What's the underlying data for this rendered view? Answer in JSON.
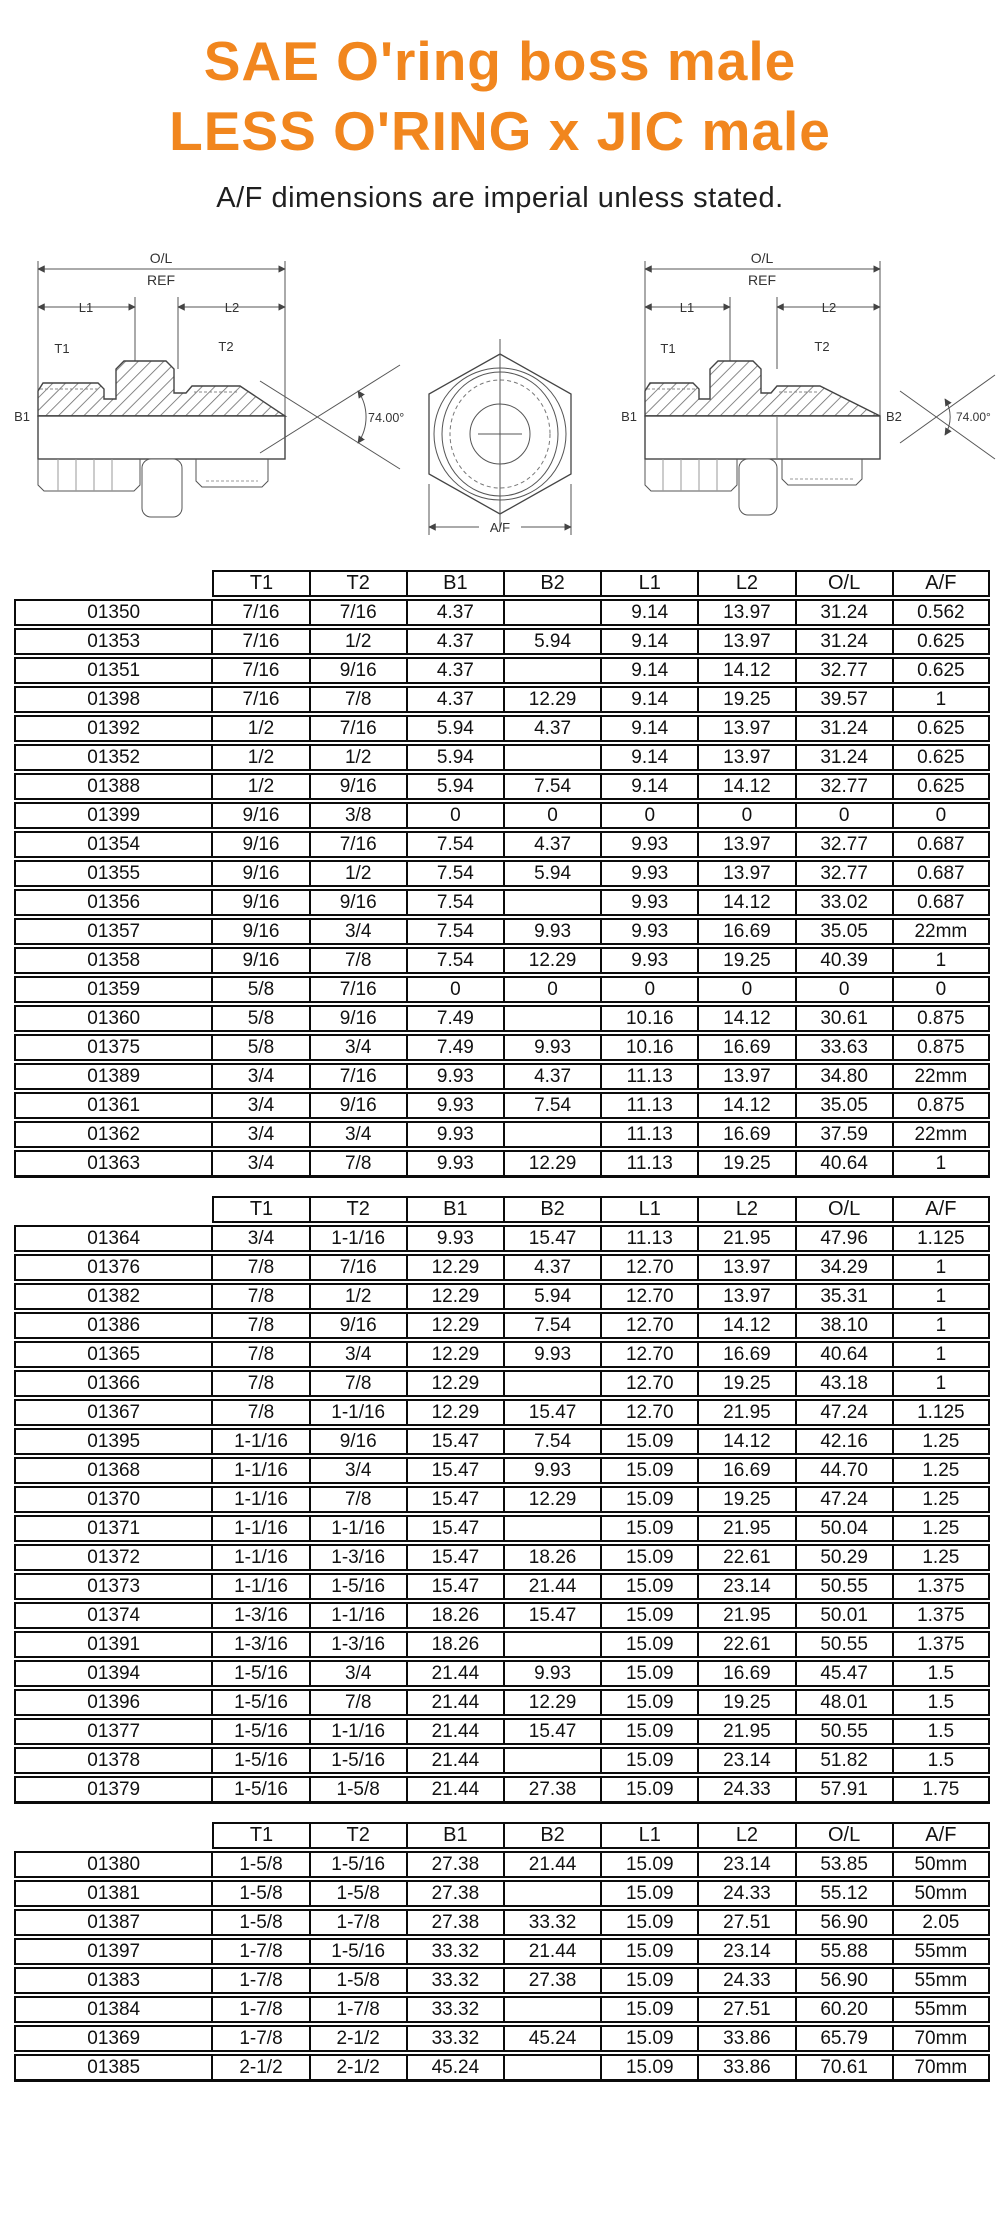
{
  "title": {
    "line1": "SAE O'ring boss male",
    "line2": "LESS O'RING x JIC male"
  },
  "subtitle": "A/F dimensions are imperial unless stated.",
  "accent_color": "#F1861E",
  "diagram": {
    "left": {
      "ol": "O/L",
      "ref": "REF",
      "l1": "L1",
      "l2": "L2",
      "t1": "T1",
      "t2": "T2",
      "b1": "B1",
      "angle": "74.00°"
    },
    "center": {
      "af": "A/F"
    },
    "right": {
      "ol": "O/L",
      "ref": "REF",
      "l1": "L1",
      "l2": "L2",
      "t1": "T1",
      "t2": "T2",
      "b1": "B1",
      "b2": "B2",
      "angle": "74.00°"
    }
  },
  "headers": [
    "T1",
    "T2",
    "B1",
    "B2",
    "L1",
    "L2",
    "O/L",
    "A/F"
  ],
  "tables": [
    {
      "rows": [
        [
          "01350",
          "7/16",
          "7/16",
          "4.37",
          "",
          "9.14",
          "13.97",
          "31.24",
          "0.562"
        ],
        [
          "01353",
          "7/16",
          "1/2",
          "4.37",
          "5.94",
          "9.14",
          "13.97",
          "31.24",
          "0.625"
        ],
        [
          "01351",
          "7/16",
          "9/16",
          "4.37",
          "",
          "9.14",
          "14.12",
          "32.77",
          "0.625"
        ],
        [
          "01398",
          "7/16",
          "7/8",
          "4.37",
          "12.29",
          "9.14",
          "19.25",
          "39.57",
          "1"
        ],
        [
          "01392",
          "1/2",
          "7/16",
          "5.94",
          "4.37",
          "9.14",
          "13.97",
          "31.24",
          "0.625"
        ],
        [
          "01352",
          "1/2",
          "1/2",
          "5.94",
          "",
          "9.14",
          "13.97",
          "31.24",
          "0.625"
        ],
        [
          "01388",
          "1/2",
          "9/16",
          "5.94",
          "7.54",
          "9.14",
          "14.12",
          "32.77",
          "0.625"
        ],
        [
          "01399",
          "9/16",
          "3/8",
          "0",
          "0",
          "0",
          "0",
          "0",
          "0"
        ],
        [
          "01354",
          "9/16",
          "7/16",
          "7.54",
          "4.37",
          "9.93",
          "13.97",
          "32.77",
          "0.687"
        ],
        [
          "01355",
          "9/16",
          "1/2",
          "7.54",
          "5.94",
          "9.93",
          "13.97",
          "32.77",
          "0.687"
        ],
        [
          "01356",
          "9/16",
          "9/16",
          "7.54",
          "",
          "9.93",
          "14.12",
          "33.02",
          "0.687"
        ],
        [
          "01357",
          "9/16",
          "3/4",
          "7.54",
          "9.93",
          "9.93",
          "16.69",
          "35.05",
          "22mm"
        ],
        [
          "01358",
          "9/16",
          "7/8",
          "7.54",
          "12.29",
          "9.93",
          "19.25",
          "40.39",
          "1"
        ],
        [
          "01359",
          "5/8",
          "7/16",
          "0",
          "0",
          "0",
          "0",
          "0",
          "0"
        ],
        [
          "01360",
          "5/8",
          "9/16",
          "7.49",
          "",
          "10.16",
          "14.12",
          "30.61",
          "0.875"
        ],
        [
          "01375",
          "5/8",
          "3/4",
          "7.49",
          "9.93",
          "10.16",
          "16.69",
          "33.63",
          "0.875"
        ],
        [
          "01389",
          "3/4",
          "7/16",
          "9.93",
          "4.37",
          "11.13",
          "13.97",
          "34.80",
          "22mm"
        ],
        [
          "01361",
          "3/4",
          "9/16",
          "9.93",
          "7.54",
          "11.13",
          "14.12",
          "35.05",
          "0.875"
        ],
        [
          "01362",
          "3/4",
          "3/4",
          "9.93",
          "",
          "11.13",
          "16.69",
          "37.59",
          "22mm"
        ],
        [
          "01363",
          "3/4",
          "7/8",
          "9.93",
          "12.29",
          "11.13",
          "19.25",
          "40.64",
          "1"
        ]
      ]
    },
    {
      "rows": [
        [
          "01364",
          "3/4",
          "1-1/16",
          "9.93",
          "15.47",
          "11.13",
          "21.95",
          "47.96",
          "1.125"
        ],
        [
          "01376",
          "7/8",
          "7/16",
          "12.29",
          "4.37",
          "12.70",
          "13.97",
          "34.29",
          "1"
        ],
        [
          "01382",
          "7/8",
          "1/2",
          "12.29",
          "5.94",
          "12.70",
          "13.97",
          "35.31",
          "1"
        ],
        [
          "01386",
          "7/8",
          "9/16",
          "12.29",
          "7.54",
          "12.70",
          "14.12",
          "38.10",
          "1"
        ],
        [
          "01365",
          "7/8",
          "3/4",
          "12.29",
          "9.93",
          "12.70",
          "16.69",
          "40.64",
          "1"
        ],
        [
          "01366",
          "7/8",
          "7/8",
          "12.29",
          "",
          "12.70",
          "19.25",
          "43.18",
          "1"
        ],
        [
          "01367",
          "7/8",
          "1-1/16",
          "12.29",
          "15.47",
          "12.70",
          "21.95",
          "47.24",
          "1.125"
        ],
        [
          "01395",
          "1-1/16",
          "9/16",
          "15.47",
          "7.54",
          "15.09",
          "14.12",
          "42.16",
          "1.25"
        ],
        [
          "01368",
          "1-1/16",
          "3/4",
          "15.47",
          "9.93",
          "15.09",
          "16.69",
          "44.70",
          "1.25"
        ],
        [
          "01370",
          "1-1/16",
          "7/8",
          "15.47",
          "12.29",
          "15.09",
          "19.25",
          "47.24",
          "1.25"
        ],
        [
          "01371",
          "1-1/16",
          "1-1/16",
          "15.47",
          "",
          "15.09",
          "21.95",
          "50.04",
          "1.25"
        ],
        [
          "01372",
          "1-1/16",
          "1-3/16",
          "15.47",
          "18.26",
          "15.09",
          "22.61",
          "50.29",
          "1.25"
        ],
        [
          "01373",
          "1-1/16",
          "1-5/16",
          "15.47",
          "21.44",
          "15.09",
          "23.14",
          "50.55",
          "1.375"
        ],
        [
          "01374",
          "1-3/16",
          "1-1/16",
          "18.26",
          "15.47",
          "15.09",
          "21.95",
          "50.01",
          "1.375"
        ],
        [
          "01391",
          "1-3/16",
          "1-3/16",
          "18.26",
          "",
          "15.09",
          "22.61",
          "50.55",
          "1.375"
        ],
        [
          "01394",
          "1-5/16",
          "3/4",
          "21.44",
          "9.93",
          "15.09",
          "16.69",
          "45.47",
          "1.5"
        ],
        [
          "01396",
          "1-5/16",
          "7/8",
          "21.44",
          "12.29",
          "15.09",
          "19.25",
          "48.01",
          "1.5"
        ],
        [
          "01377",
          "1-5/16",
          "1-1/16",
          "21.44",
          "15.47",
          "15.09",
          "21.95",
          "50.55",
          "1.5"
        ],
        [
          "01378",
          "1-5/16",
          "1-5/16",
          "21.44",
          "",
          "15.09",
          "23.14",
          "51.82",
          "1.5"
        ],
        [
          "01379",
          "1-5/16",
          "1-5/8",
          "21.44",
          "27.38",
          "15.09",
          "24.33",
          "57.91",
          "1.75"
        ]
      ]
    },
    {
      "rows": [
        [
          "01380",
          "1-5/8",
          "1-5/16",
          "27.38",
          "21.44",
          "15.09",
          "23.14",
          "53.85",
          "50mm"
        ],
        [
          "01381",
          "1-5/8",
          "1-5/8",
          "27.38",
          "",
          "15.09",
          "24.33",
          "55.12",
          "50mm"
        ],
        [
          "01387",
          "1-5/8",
          "1-7/8",
          "27.38",
          "33.32",
          "15.09",
          "27.51",
          "56.90",
          "2.05"
        ],
        [
          "01397",
          "1-7/8",
          "1-5/16",
          "33.32",
          "21.44",
          "15.09",
          "23.14",
          "55.88",
          "55mm"
        ],
        [
          "01383",
          "1-7/8",
          "1-5/8",
          "33.32",
          "27.38",
          "15.09",
          "24.33",
          "56.90",
          "55mm"
        ],
        [
          "01384",
          "1-7/8",
          "1-7/8",
          "33.32",
          "",
          "15.09",
          "27.51",
          "60.20",
          "55mm"
        ],
        [
          "01369",
          "1-7/8",
          "2-1/2",
          "33.32",
          "45.24",
          "15.09",
          "33.86",
          "65.79",
          "70mm"
        ],
        [
          "01385",
          "2-1/2",
          "2-1/2",
          "45.24",
          "",
          "15.09",
          "33.86",
          "70.61",
          "70mm"
        ]
      ]
    }
  ]
}
